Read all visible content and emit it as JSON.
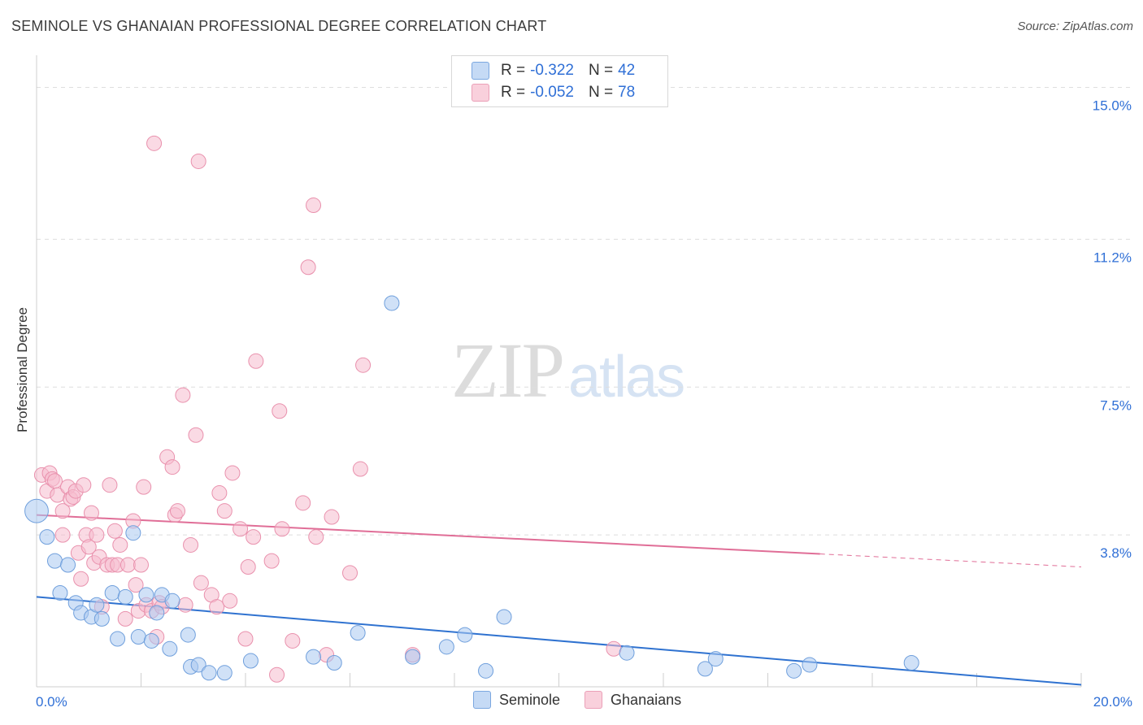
{
  "header": {
    "title": "SEMINOLE VS GHANAIAN PROFESSIONAL DEGREE CORRELATION CHART",
    "source": "Source: ZipAtlas.com"
  },
  "watermark": {
    "part1": "ZIP",
    "part2": "atlas"
  },
  "legend_top": {
    "rows": [
      {
        "r_label": "R =",
        "r_value": "-0.322",
        "n_label": "N =",
        "n_value": "42"
      },
      {
        "r_label": "R =",
        "r_value": "-0.052",
        "n_label": "N =",
        "n_value": "78"
      }
    ]
  },
  "legend_bottom": {
    "items": [
      {
        "label": "Seminole"
      },
      {
        "label": "Ghanaians"
      }
    ]
  },
  "colors": {
    "seminole_fill": "#a9c8f0",
    "seminole_stroke": "#6f9fdc",
    "seminole_line": "#2f72d0",
    "ghanaian_fill": "#f6bccd",
    "ghanaian_stroke": "#e991ad",
    "ghanaian_line": "#e06e97",
    "axis_text": "#2f6fd6",
    "grid": "#dedede"
  },
  "chart_data": {
    "type": "scatter",
    "title": "SEMINOLE VS GHANAIAN PROFESSIONAL DEGREE CORRELATION CHART",
    "xlabel": "",
    "ylabel": "Professional Degree",
    "xlim": [
      0,
      20
    ],
    "ylim": [
      0,
      15.6
    ],
    "x_tick_labels": {
      "min": "0.0%",
      "max": "20.0%"
    },
    "y_ticks": [
      {
        "value": 3.8,
        "label": "3.8%"
      },
      {
        "value": 7.5,
        "label": "7.5%"
      },
      {
        "value": 11.2,
        "label": "11.2%"
      },
      {
        "value": 15.0,
        "label": "15.0%"
      }
    ],
    "series": [
      {
        "name": "Seminole",
        "r": -0.322,
        "n": 42,
        "trend": {
          "x0": 0.0,
          "y0": 2.25,
          "x1": 20.0,
          "y1": 0.05,
          "solid_until": 20.0
        },
        "points": [
          [
            0.0,
            4.4,
            1.6
          ],
          [
            0.2,
            3.75,
            1
          ],
          [
            0.35,
            3.15,
            1
          ],
          [
            0.6,
            3.05,
            1
          ],
          [
            0.45,
            2.35,
            1
          ],
          [
            0.75,
            2.1,
            1
          ],
          [
            0.85,
            1.85,
            1
          ],
          [
            1.05,
            1.75,
            1
          ],
          [
            1.15,
            2.05,
            1
          ],
          [
            1.25,
            1.7,
            1
          ],
          [
            1.45,
            2.35,
            1
          ],
          [
            1.55,
            1.2,
            1
          ],
          [
            1.7,
            2.25,
            1
          ],
          [
            1.85,
            3.85,
            1
          ],
          [
            1.95,
            1.25,
            1
          ],
          [
            2.2,
            1.15,
            1
          ],
          [
            2.1,
            2.3,
            1
          ],
          [
            2.3,
            1.85,
            1
          ],
          [
            2.4,
            2.3,
            1
          ],
          [
            2.6,
            2.15,
            1
          ],
          [
            2.55,
            0.95,
            1
          ],
          [
            2.9,
            1.3,
            1
          ],
          [
            2.95,
            0.5,
            1
          ],
          [
            3.1,
            0.55,
            1
          ],
          [
            3.3,
            0.35,
            1
          ],
          [
            3.6,
            0.35,
            1
          ],
          [
            4.1,
            0.65,
            1
          ],
          [
            5.3,
            0.75,
            1
          ],
          [
            5.7,
            0.6,
            1
          ],
          [
            6.15,
            1.35,
            1
          ],
          [
            6.8,
            9.6,
            1
          ],
          [
            7.2,
            0.75,
            1
          ],
          [
            7.85,
            1.0,
            1
          ],
          [
            8.2,
            1.3,
            1
          ],
          [
            8.6,
            0.4,
            1
          ],
          [
            8.95,
            1.75,
            1
          ],
          [
            11.3,
            0.85,
            1
          ],
          [
            12.8,
            0.45,
            1
          ],
          [
            13.0,
            0.7,
            1
          ],
          [
            14.5,
            0.4,
            1
          ],
          [
            14.8,
            0.55,
            1
          ],
          [
            16.75,
            0.6,
            1
          ]
        ]
      },
      {
        "name": "Ghanaians",
        "r": -0.052,
        "n": 78,
        "trend": {
          "x0": 0.0,
          "y0": 4.3,
          "x1": 20.0,
          "y1": 3.0,
          "solid_until": 15.0
        },
        "points": [
          [
            0.1,
            5.3,
            1
          ],
          [
            0.2,
            4.9,
            1
          ],
          [
            0.25,
            5.35,
            1
          ],
          [
            0.3,
            5.2,
            1
          ],
          [
            0.35,
            5.15,
            1
          ],
          [
            0.4,
            4.8,
            1
          ],
          [
            0.5,
            4.4,
            1
          ],
          [
            0.5,
            3.8,
            1
          ],
          [
            0.6,
            5.0,
            1
          ],
          [
            0.65,
            4.7,
            1
          ],
          [
            0.7,
            4.75,
            1
          ],
          [
            0.75,
            4.9,
            1
          ],
          [
            0.8,
            3.35,
            1
          ],
          [
            0.85,
            2.7,
            1
          ],
          [
            0.9,
            5.05,
            1
          ],
          [
            0.95,
            3.8,
            1
          ],
          [
            1.0,
            3.5,
            1
          ],
          [
            1.05,
            4.35,
            1
          ],
          [
            1.1,
            3.1,
            1
          ],
          [
            1.15,
            3.8,
            1
          ],
          [
            1.2,
            3.25,
            1
          ],
          [
            1.25,
            2.0,
            1
          ],
          [
            1.35,
            3.05,
            1
          ],
          [
            1.4,
            5.05,
            1
          ],
          [
            1.45,
            3.05,
            1
          ],
          [
            1.5,
            3.9,
            1
          ],
          [
            1.55,
            3.05,
            1
          ],
          [
            1.6,
            3.55,
            1
          ],
          [
            1.7,
            1.7,
            1
          ],
          [
            1.75,
            3.05,
            1
          ],
          [
            1.85,
            4.15,
            1
          ],
          [
            1.9,
            2.55,
            1
          ],
          [
            1.95,
            1.9,
            1
          ],
          [
            2.0,
            3.05,
            1
          ],
          [
            2.05,
            5.0,
            1
          ],
          [
            2.1,
            2.05,
            1
          ],
          [
            2.2,
            1.9,
            1
          ],
          [
            2.25,
            13.6,
            1
          ],
          [
            2.3,
            1.25,
            1
          ],
          [
            2.35,
            2.1,
            1
          ],
          [
            2.4,
            2.0,
            1
          ],
          [
            2.5,
            5.75,
            1
          ],
          [
            2.6,
            5.5,
            1
          ],
          [
            2.65,
            4.3,
            1
          ],
          [
            2.7,
            4.4,
            1
          ],
          [
            2.8,
            7.3,
            1
          ],
          [
            2.85,
            2.05,
            1
          ],
          [
            2.95,
            3.55,
            1
          ],
          [
            3.05,
            6.3,
            1
          ],
          [
            3.15,
            2.6,
            1
          ],
          [
            3.1,
            13.15,
            1
          ],
          [
            3.35,
            2.3,
            1
          ],
          [
            3.45,
            2.0,
            1
          ],
          [
            3.5,
            4.85,
            1
          ],
          [
            3.6,
            4.4,
            1
          ],
          [
            3.7,
            2.15,
            1
          ],
          [
            3.75,
            5.35,
            1
          ],
          [
            3.9,
            3.95,
            1
          ],
          [
            4.0,
            1.2,
            1
          ],
          [
            4.05,
            3.0,
            1
          ],
          [
            4.2,
            8.15,
            1
          ],
          [
            4.15,
            3.75,
            1
          ],
          [
            4.5,
            3.15,
            1
          ],
          [
            4.6,
            0.3,
            1
          ],
          [
            4.65,
            6.9,
            1
          ],
          [
            4.7,
            3.95,
            1
          ],
          [
            4.9,
            1.15,
            1
          ],
          [
            5.1,
            4.6,
            1
          ],
          [
            5.2,
            10.5,
            1
          ],
          [
            5.3,
            12.05,
            1
          ],
          [
            5.35,
            3.75,
            1
          ],
          [
            5.55,
            0.8,
            1
          ],
          [
            5.65,
            4.25,
            1
          ],
          [
            6.0,
            2.85,
            1
          ],
          [
            6.2,
            5.45,
            1
          ],
          [
            6.25,
            8.05,
            1
          ],
          [
            7.2,
            0.8,
            1
          ],
          [
            11.05,
            0.95,
            1
          ]
        ]
      }
    ]
  }
}
